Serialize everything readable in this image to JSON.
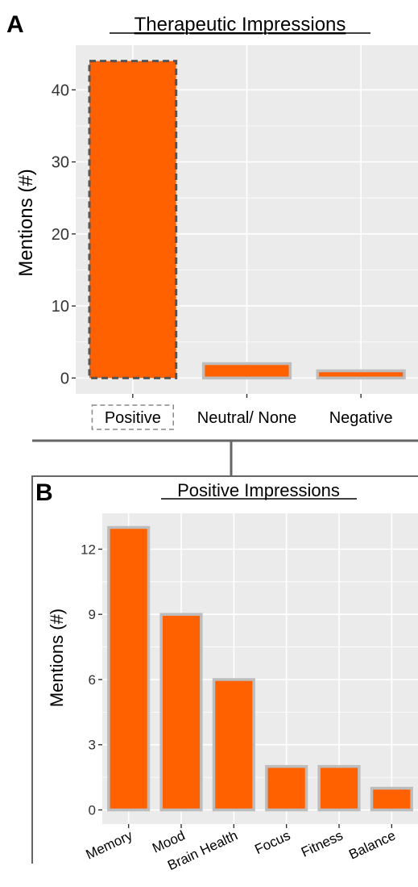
{
  "panels": {
    "a_letter": "A",
    "b_letter": "B"
  },
  "colors": {
    "bar_fill": "#FF6000",
    "bar_outline": "#BDBDBD",
    "highlight_outline": "#555555",
    "panel_bg": "#EBEBEB",
    "grid": "#FFFFFF",
    "connector": "#666666"
  },
  "chart_data": [
    {
      "type": "bar",
      "title": "Therapeutic Impressions",
      "xlabel": "",
      "ylabel": "Mentions (#)",
      "categories": [
        "Positive",
        "Neutral/ None",
        "Negative"
      ],
      "values": [
        44,
        2,
        1
      ],
      "highlighted_category": "Positive",
      "ylim": [
        -2.2,
        46.2
      ],
      "yticks": [
        0,
        10,
        20,
        30,
        40
      ],
      "grid": true
    },
    {
      "type": "bar",
      "title": "Positive Impressions",
      "xlabel": "",
      "ylabel": "Mentions (#)",
      "categories": [
        "Memory",
        "Mood",
        "Brain Health",
        "Focus",
        "Fitness",
        "Balance"
      ],
      "values": [
        13,
        9,
        6,
        2,
        2,
        1
      ],
      "ylim": [
        -0.65,
        13.65
      ],
      "yticks": [
        0,
        3,
        6,
        9,
        12
      ],
      "grid": true
    }
  ]
}
